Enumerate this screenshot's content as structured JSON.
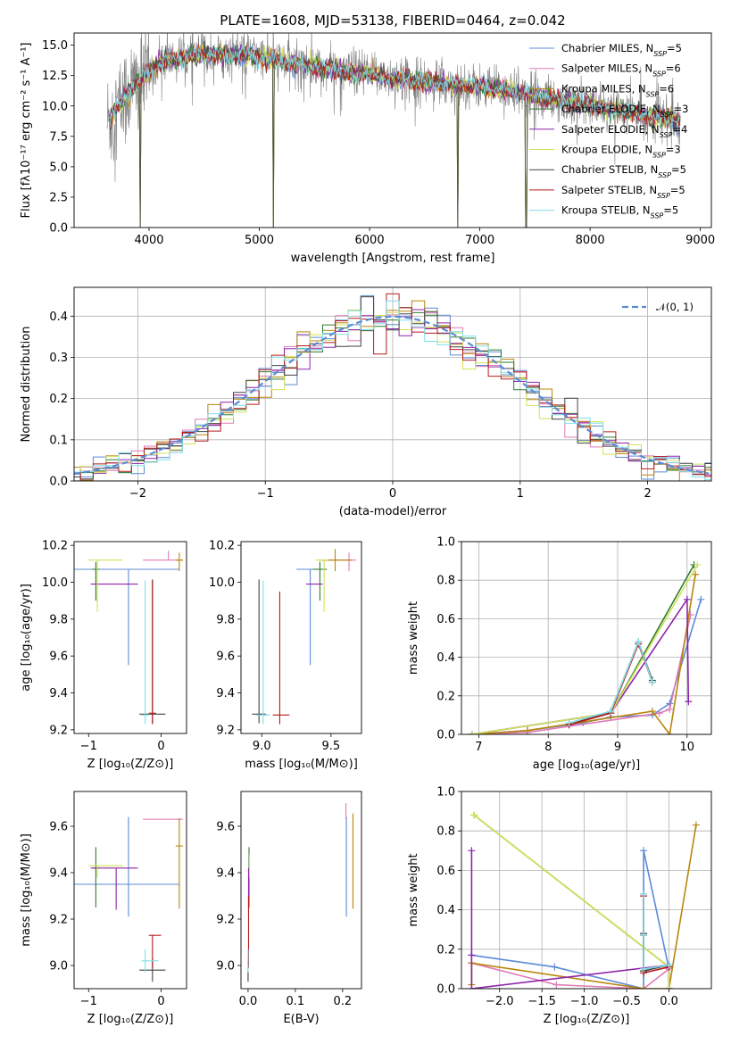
{
  "figure_title": "PLATE=1608, MJD=53138, FIBERID=0464, z=0.042",
  "models": [
    {
      "name": "Chabrier MILES",
      "nssp": "5",
      "color": "#5b8bd6"
    },
    {
      "name": "Salpeter MILES",
      "nssp": "6",
      "color": "#e07bb6"
    },
    {
      "name": "Kroupa MILES",
      "nssp": "6",
      "color": "#b8860b"
    },
    {
      "name": "Chabrier ELODIE",
      "nssp": "3",
      "color": "#2e7d32"
    },
    {
      "name": "Salpeter ELODIE",
      "nssp": "4",
      "color": "#8e24aa"
    },
    {
      "name": "Kroupa ELODIE",
      "nssp": "3",
      "color": "#d4e157"
    },
    {
      "name": "Chabrier STELIB",
      "nssp": "5",
      "color": "#424242"
    },
    {
      "name": "Salpeter STELIB",
      "nssp": "5",
      "color": "#b71c1c"
    },
    {
      "name": "Kroupa STELIB",
      "nssp": "5",
      "color": "#80deea"
    }
  ],
  "data_color": "#7f7f7f",
  "chart_data": [
    {
      "id": "spectrum",
      "type": "line",
      "xlabel": "wavelength [Angstrom, rest frame]",
      "ylabel": "Flux [fλ10⁻¹⁷ erg cm⁻² s⁻¹ A⁻¹]",
      "xlim": [
        3320,
        9100
      ],
      "ylim": [
        0,
        16
      ],
      "xticks": [
        "4000",
        "5000",
        "6000",
        "7000",
        "8000",
        "9000"
      ],
      "yticks": [
        "0.0",
        "2.5",
        "5.0",
        "7.5",
        "10.0",
        "12.5",
        "15.0"
      ],
      "wave_range": [
        3620,
        8820
      ],
      "continuum_points": [
        [
          3650,
          9.0
        ],
        [
          3850,
          11.5
        ],
        [
          4100,
          13.6
        ],
        [
          4500,
          14.3
        ],
        [
          4900,
          14.2
        ],
        [
          5300,
          13.5
        ],
        [
          6000,
          12.5
        ],
        [
          7000,
          11.6
        ],
        [
          7400,
          11.0
        ],
        [
          8000,
          10.0
        ],
        [
          8800,
          8.8
        ]
      ],
      "dips": [
        [
          3920,
          0.0
        ],
        [
          5130,
          0.0
        ],
        [
          6800,
          0.0
        ],
        [
          7420,
          0.0
        ]
      ],
      "legend_location": "upper right"
    },
    {
      "id": "residuals",
      "type": "step",
      "xlabel": "(data-model)/error",
      "ylabel": "Normed distribution",
      "xlim": [
        -2.5,
        2.5
      ],
      "ylim": [
        0,
        0.47
      ],
      "xticks": [
        "−2",
        "−1",
        "0",
        "1",
        "2"
      ],
      "yticks": [
        "0.0",
        "0.1",
        "0.2",
        "0.3",
        "0.4"
      ],
      "gaussian_label": "𝒩(0, 1)",
      "gaussian_color": "#5b8bd6",
      "grid": true,
      "legend_location": "upper right"
    },
    {
      "id": "age-vs-Z",
      "type": "errorbar",
      "xlabel": "Z [log₁₀(Z/Z⊙)]",
      "ylabel": "age  [log₁₀(age/yr)]",
      "xlim": [
        -1.2,
        0.35
      ],
      "ylim": [
        9.18,
        10.22
      ],
      "xticks": [
        "−1",
        "0"
      ],
      "yticks": [
        "9.2",
        "9.4",
        "9.6",
        "9.8",
        "10.0",
        "10.2"
      ],
      "points": [
        {
          "model": 0,
          "x": -0.45,
          "xerr": [
            0.75,
            0.7
          ],
          "y": 10.07,
          "yerr": [
            0.52,
            0.0
          ]
        },
        {
          "model": 1,
          "x": 0.1,
          "xerr": [
            0.35,
            0.2
          ],
          "y": 10.12,
          "yerr": [
            0.0,
            0.05
          ]
        },
        {
          "model": 2,
          "x": 0.25,
          "xerr": [
            0.05,
            0.05
          ],
          "y": 10.12,
          "yerr": [
            0.06,
            0.04
          ]
        },
        {
          "model": 3,
          "x": -0.9,
          "xerr": [
            0.05,
            0.05
          ],
          "y": 10.07,
          "yerr": [
            0.17,
            0.04
          ]
        },
        {
          "model": 4,
          "x": -0.62,
          "xerr": [
            0.35,
            0.3
          ],
          "y": 9.99,
          "yerr": [
            0.0,
            0.0
          ]
        },
        {
          "model": 5,
          "x": -0.88,
          "xerr": [
            0.12,
            0.35
          ],
          "y": 10.12,
          "yerr": [
            0.28,
            0.0
          ]
        },
        {
          "model": 6,
          "x": -0.12,
          "xerr": [
            0.18,
            0.18
          ],
          "y": 9.285,
          "yerr": [
            0.05,
            0.73
          ]
        },
        {
          "model": 7,
          "x": -0.12,
          "xerr": [
            0.05,
            0.05
          ],
          "y": 9.29,
          "yerr": [
            0.06,
            0.72
          ]
        },
        {
          "model": 8,
          "x": -0.22,
          "xerr": [
            0.05,
            0.05
          ],
          "y": 9.28,
          "yerr": [
            0.05,
            0.73
          ]
        }
      ]
    },
    {
      "id": "age-vs-mass",
      "type": "errorbar",
      "xlabel": "mass [log₁₀(M/M⊙)]",
      "ylabel": "",
      "xlim": [
        8.85,
        9.72
      ],
      "ylim": [
        9.18,
        10.22
      ],
      "xticks": [
        "9.0",
        "9.5"
      ],
      "yticks": [
        "9.2",
        "9.4",
        "9.6",
        "9.8",
        "10.0",
        "10.2"
      ],
      "points": [
        {
          "model": 0,
          "x": 9.35,
          "xerr": [
            0.1,
            0.05
          ],
          "y": 10.07,
          "yerr": [
            0.52,
            0.0
          ]
        },
        {
          "model": 1,
          "x": 9.63,
          "xerr": [
            0.18,
            0.05
          ],
          "y": 10.12,
          "yerr": [
            0.06,
            0.04
          ]
        },
        {
          "model": 2,
          "x": 9.53,
          "xerr": [
            0.12,
            0.12
          ],
          "y": 10.12,
          "yerr": [
            0.06,
            0.06
          ]
        },
        {
          "model": 3,
          "x": 9.42,
          "xerr": [
            0.05,
            0.05
          ],
          "y": 10.07,
          "yerr": [
            0.17,
            0.04
          ]
        },
        {
          "model": 4,
          "x": 9.42,
          "xerr": [
            0.1,
            0.02
          ],
          "y": 9.99,
          "yerr": [
            0.0,
            0.0
          ]
        },
        {
          "model": 5,
          "x": 9.45,
          "xerr": [
            0.06,
            0.03
          ],
          "y": 10.12,
          "yerr": [
            0.28,
            0.0
          ]
        },
        {
          "model": 6,
          "x": 8.98,
          "xerr": [
            0.05,
            0.05
          ],
          "y": 9.285,
          "yerr": [
            0.05,
            0.73
          ]
        },
        {
          "model": 7,
          "x": 9.13,
          "xerr": [
            0.05,
            0.07
          ],
          "y": 9.28,
          "yerr": [
            0.05,
            0.67
          ]
        },
        {
          "model": 8,
          "x": 9.01,
          "xerr": [
            0.05,
            0.05
          ],
          "y": 9.28,
          "yerr": [
            0.05,
            0.73
          ]
        }
      ]
    },
    {
      "id": "massweight-vs-age",
      "type": "line",
      "xlabel": "age  [log₁₀(age/yr)]",
      "ylabel": "mass weight",
      "xlim": [
        6.75,
        10.35
      ],
      "ylim": [
        0,
        1.0
      ],
      "xticks": [
        "7",
        "8",
        "9",
        "10"
      ],
      "yticks": [
        "0.0",
        "0.2",
        "0.4",
        "0.6",
        "0.8",
        "1.0"
      ],
      "grid": true,
      "series": [
        {
          "model": 0,
          "x": [
            6.9,
            7.7,
            8.5,
            8.9,
            9.5,
            9.75,
            10.2
          ],
          "y": [
            0.0,
            0.02,
            0.06,
            0.09,
            0.1,
            0.16,
            0.7
          ]
        },
        {
          "model": 1,
          "x": [
            6.9,
            7.7,
            9.6,
            9.75,
            10.05
          ],
          "y": [
            0.0,
            0.01,
            0.11,
            0.13,
            0.62
          ]
        },
        {
          "model": 2,
          "x": [
            6.9,
            7.7,
            9.5,
            9.75,
            10.12
          ],
          "y": [
            0.0,
            0.02,
            0.12,
            0.0,
            0.83
          ]
        },
        {
          "model": 3,
          "x": [
            6.9,
            8.9,
            10.1
          ],
          "y": [
            0.0,
            0.11,
            0.88
          ]
        },
        {
          "model": 4,
          "x": [
            6.9,
            8.9,
            10.0,
            10.02
          ],
          "y": [
            0.0,
            0.11,
            0.7,
            0.17
          ]
        },
        {
          "model": 5,
          "x": [
            6.9,
            8.9,
            10.15
          ],
          "y": [
            0.0,
            0.11,
            0.88
          ]
        },
        {
          "model": 6,
          "x": [
            8.3,
            8.9,
            9.3,
            9.5
          ],
          "y": [
            0.05,
            0.12,
            0.48,
            0.28
          ]
        },
        {
          "model": 7,
          "x": [
            8.3,
            8.9,
            9.3,
            9.5
          ],
          "y": [
            0.05,
            0.11,
            0.47,
            0.27
          ]
        },
        {
          "model": 8,
          "x": [
            8.3,
            8.9,
            9.3,
            9.5
          ],
          "y": [
            0.06,
            0.12,
            0.48,
            0.27
          ]
        }
      ]
    },
    {
      "id": "mass-vs-Z",
      "type": "errorbar",
      "xlabel": "Z [log₁₀(Z/Z⊙)]",
      "ylabel": "mass [log₁₀(M/M⊙)]",
      "xlim": [
        -1.2,
        0.35
      ],
      "ylim": [
        8.9,
        9.75
      ],
      "xticks": [
        "−1",
        "0"
      ],
      "yticks": [
        "9.0",
        "9.2",
        "9.4",
        "9.6"
      ],
      "points": [
        {
          "model": 0,
          "x": -0.45,
          "xerr": [
            0.75,
            0.7
          ],
          "y": 9.35,
          "yerr": [
            0.14,
            0.29
          ]
        },
        {
          "model": 1,
          "x": 0.1,
          "xerr": [
            0.35,
            0.2
          ],
          "y": 9.63,
          "yerr": [
            0.0,
            0.0
          ]
        },
        {
          "model": 2,
          "x": 0.25,
          "xerr": [
            0.05,
            0.05
          ],
          "y": 9.515,
          "yerr": [
            0.27,
            0.12
          ]
        },
        {
          "model": 3,
          "x": -0.9,
          "xerr": [
            0.05,
            0.05
          ],
          "y": 9.42,
          "yerr": [
            0.17,
            0.09
          ]
        },
        {
          "model": 4,
          "x": -0.62,
          "xerr": [
            0.35,
            0.3
          ],
          "y": 9.42,
          "yerr": [
            0.18,
            0.0
          ]
        },
        {
          "model": 5,
          "x": -0.88,
          "xerr": [
            0.12,
            0.35
          ],
          "y": 9.43,
          "yerr": [
            0.05,
            0.0
          ]
        },
        {
          "model": 6,
          "x": -0.12,
          "xerr": [
            0.18,
            0.18
          ],
          "y": 8.98,
          "yerr": [
            0.05,
            0.05
          ]
        },
        {
          "model": 7,
          "x": -0.12,
          "xerr": [
            0.05,
            0.12
          ],
          "y": 9.13,
          "yerr": [
            0.14,
            0.0
          ]
        },
        {
          "model": 8,
          "x": -0.22,
          "xerr": [
            0.05,
            0.18
          ],
          "y": 9.02,
          "yerr": [
            0.05,
            0.05
          ]
        }
      ]
    },
    {
      "id": "mass-vs-EBV",
      "type": "errorbar",
      "xlabel": "E(B-V)",
      "ylabel": "",
      "xlim": [
        -0.015,
        0.24
      ],
      "ylim": [
        8.9,
        9.75
      ],
      "xticks": [
        "0.0",
        "0.1",
        "0.2"
      ],
      "yticks": [
        "9.0",
        "9.2",
        "9.4",
        "9.6"
      ],
      "points": [
        {
          "model": 0,
          "x": 0.208,
          "xerr": [
            0.0,
            0.0
          ],
          "y": 9.35,
          "yerr": [
            0.14,
            0.29
          ]
        },
        {
          "model": 1,
          "x": 0.207,
          "xerr": [
            0.0,
            0.0
          ],
          "y": 9.63,
          "yerr": [
            0.0,
            0.07
          ]
        },
        {
          "model": 2,
          "x": 0.222,
          "xerr": [
            0.0,
            0.0
          ],
          "y": 9.515,
          "yerr": [
            0.27,
            0.14
          ]
        },
        {
          "model": 3,
          "x": 0.002,
          "xerr": [
            0.0,
            0.0
          ],
          "y": 9.42,
          "yerr": [
            0.17,
            0.09
          ]
        },
        {
          "model": 4,
          "x": 0.001,
          "xerr": [
            0.0,
            0.0
          ],
          "y": 9.42,
          "yerr": [
            0.18,
            0.0
          ]
        },
        {
          "model": 5,
          "x": 0.003,
          "xerr": [
            0.0,
            0.0
          ],
          "y": 9.43,
          "yerr": [
            0.05,
            0.05
          ]
        },
        {
          "model": 6,
          "x": 0.0,
          "xerr": [
            0.0,
            0.0
          ],
          "y": 8.98,
          "yerr": [
            0.05,
            0.05
          ]
        },
        {
          "model": 7,
          "x": 0.001,
          "xerr": [
            0.0,
            0.0
          ],
          "y": 9.13,
          "yerr": [
            0.14,
            0.17
          ]
        },
        {
          "model": 8,
          "x": 0.0,
          "xerr": [
            0.0,
            0.0
          ],
          "y": 9.02,
          "yerr": [
            0.05,
            0.05
          ]
        }
      ]
    },
    {
      "id": "massweight-vs-Z",
      "type": "line",
      "xlabel": "Z [log₁₀(Z/Z⊙)]",
      "ylabel": "mass weight",
      "xlim": [
        -2.45,
        0.5
      ],
      "ylim": [
        0,
        1.0
      ],
      "xticks": [
        "−2.0",
        "−1.5",
        "−1.0",
        "−0.5",
        "0.0"
      ],
      "yticks": [
        "0.0",
        "0.2",
        "0.4",
        "0.6",
        "0.8",
        "1.0"
      ],
      "grid": true,
      "series": [
        {
          "model": 0,
          "x": [
            -2.33,
            -1.35,
            -0.3,
            -0.3,
            0.0,
            0.0
          ],
          "y": [
            0.17,
            0.11,
            0.0,
            0.7,
            0.1,
            0.0
          ]
        },
        {
          "model": 1,
          "x": [
            -2.33,
            -1.33,
            -0.3,
            0.0,
            0.0
          ],
          "y": [
            0.13,
            0.02,
            0.0,
            0.1,
            0.0
          ]
        },
        {
          "model": 2,
          "x": [
            -2.33,
            -2.33,
            -0.3,
            0.0,
            0.32
          ],
          "y": [
            0.02,
            0.13,
            0.0,
            0.0,
            0.83
          ]
        },
        {
          "model": 3,
          "x": [
            -2.3,
            0.0,
            0.0
          ],
          "y": [
            0.88,
            0.11,
            0.0
          ]
        },
        {
          "model": 4,
          "x": [
            -2.33,
            -2.33,
            -2.33,
            0.0,
            0.0
          ],
          "y": [
            0.7,
            0.17,
            0.0,
            0.12,
            0.0
          ]
        },
        {
          "model": 5,
          "x": [
            -2.3,
            0.0,
            0.0
          ],
          "y": [
            0.88,
            0.11,
            0.0
          ]
        },
        {
          "model": 6,
          "x": [
            -0.3,
            -0.3,
            -0.3,
            0.0
          ],
          "y": [
            0.48,
            0.28,
            0.09,
            0.12
          ]
        },
        {
          "model": 7,
          "x": [
            -0.3,
            -0.3,
            -0.3,
            0.0
          ],
          "y": [
            0.47,
            0.27,
            0.08,
            0.11
          ]
        },
        {
          "model": 8,
          "x": [
            -0.3,
            -0.3,
            -0.3,
            0.0
          ],
          "y": [
            0.48,
            0.27,
            0.1,
            0.12
          ]
        }
      ]
    }
  ]
}
